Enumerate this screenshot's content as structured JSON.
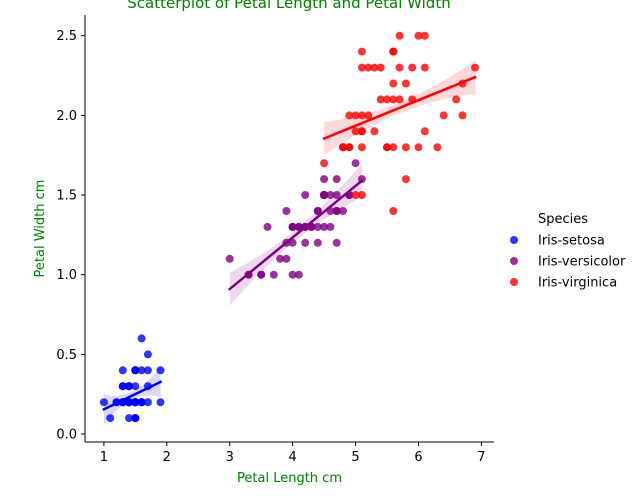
{
  "chart_data": {
    "type": "scatter",
    "title": "Scatterplot of Petal Length and Petal Width",
    "xlabel": "Petal Length cm",
    "ylabel": "Petal Width cm",
    "xlim": [
      0.7,
      7.2
    ],
    "ylim": [
      -0.05,
      2.63
    ],
    "xticks": [
      "1",
      "2",
      "3",
      "4",
      "5",
      "6",
      "7"
    ],
    "yticks": [
      "0.0",
      "0.5",
      "1.0",
      "1.5",
      "2.0",
      "2.5"
    ],
    "title_color": "#008000",
    "label_color": "#008000",
    "legend": {
      "title": "Species",
      "placement": "right"
    },
    "series": [
      {
        "name": "Iris-setosa",
        "color": "#0000ff",
        "points": [
          [
            1.4,
            0.2
          ],
          [
            1.4,
            0.2
          ],
          [
            1.3,
            0.2
          ],
          [
            1.5,
            0.2
          ],
          [
            1.4,
            0.2
          ],
          [
            1.7,
            0.4
          ],
          [
            1.4,
            0.3
          ],
          [
            1.5,
            0.2
          ],
          [
            1.4,
            0.2
          ],
          [
            1.5,
            0.1
          ],
          [
            1.5,
            0.2
          ],
          [
            1.6,
            0.2
          ],
          [
            1.4,
            0.1
          ],
          [
            1.1,
            0.1
          ],
          [
            1.2,
            0.2
          ],
          [
            1.5,
            0.4
          ],
          [
            1.3,
            0.4
          ],
          [
            1.4,
            0.3
          ],
          [
            1.7,
            0.3
          ],
          [
            1.5,
            0.3
          ],
          [
            1.7,
            0.2
          ],
          [
            1.5,
            0.4
          ],
          [
            1.0,
            0.2
          ],
          [
            1.7,
            0.5
          ],
          [
            1.9,
            0.2
          ],
          [
            1.6,
            0.2
          ],
          [
            1.6,
            0.4
          ],
          [
            1.5,
            0.2
          ],
          [
            1.4,
            0.2
          ],
          [
            1.6,
            0.2
          ],
          [
            1.6,
            0.2
          ],
          [
            1.5,
            0.4
          ],
          [
            1.5,
            0.1
          ],
          [
            1.4,
            0.2
          ],
          [
            1.5,
            0.1
          ],
          [
            1.2,
            0.2
          ],
          [
            1.3,
            0.2
          ],
          [
            1.5,
            0.1
          ],
          [
            1.3,
            0.2
          ],
          [
            1.5,
            0.2
          ],
          [
            1.3,
            0.3
          ],
          [
            1.3,
            0.3
          ],
          [
            1.3,
            0.2
          ],
          [
            1.6,
            0.6
          ],
          [
            1.9,
            0.4
          ],
          [
            1.4,
            0.3
          ],
          [
            1.6,
            0.2
          ],
          [
            1.4,
            0.2
          ],
          [
            1.5,
            0.2
          ],
          [
            1.4,
            0.2
          ]
        ],
        "fit": {
          "x": [
            1.0,
            1.9
          ],
          "y": [
            0.155,
            0.327
          ]
        }
      },
      {
        "name": "Iris-versicolor",
        "color": "#800080",
        "points": [
          [
            4.7,
            1.4
          ],
          [
            4.5,
            1.5
          ],
          [
            4.9,
            1.5
          ],
          [
            4.0,
            1.3
          ],
          [
            4.6,
            1.5
          ],
          [
            4.5,
            1.3
          ],
          [
            4.7,
            1.6
          ],
          [
            3.3,
            1.0
          ],
          [
            4.6,
            1.3
          ],
          [
            3.9,
            1.4
          ],
          [
            3.5,
            1.0
          ],
          [
            4.2,
            1.5
          ],
          [
            4.0,
            1.0
          ],
          [
            4.7,
            1.4
          ],
          [
            3.6,
            1.3
          ],
          [
            4.4,
            1.4
          ],
          [
            4.5,
            1.5
          ],
          [
            4.1,
            1.0
          ],
          [
            4.5,
            1.5
          ],
          [
            3.9,
            1.1
          ],
          [
            4.8,
            1.8
          ],
          [
            4.0,
            1.3
          ],
          [
            4.9,
            1.5
          ],
          [
            4.7,
            1.2
          ],
          [
            4.3,
            1.3
          ],
          [
            4.4,
            1.4
          ],
          [
            4.8,
            1.4
          ],
          [
            5.0,
            1.7
          ],
          [
            4.5,
            1.5
          ],
          [
            3.5,
            1.0
          ],
          [
            3.8,
            1.1
          ],
          [
            3.7,
            1.0
          ],
          [
            3.9,
            1.2
          ],
          [
            5.1,
            1.6
          ],
          [
            4.5,
            1.5
          ],
          [
            4.5,
            1.6
          ],
          [
            4.7,
            1.5
          ],
          [
            4.4,
            1.3
          ],
          [
            4.1,
            1.3
          ],
          [
            4.0,
            1.3
          ],
          [
            4.4,
            1.2
          ],
          [
            4.6,
            1.4
          ],
          [
            4.0,
            1.2
          ],
          [
            3.3,
            1.0
          ],
          [
            4.2,
            1.3
          ],
          [
            4.2,
            1.2
          ],
          [
            4.2,
            1.3
          ],
          [
            4.3,
            1.3
          ],
          [
            3.0,
            1.1
          ],
          [
            4.1,
            1.3
          ]
        ],
        "fit": {
          "x": [
            3.0,
            5.1
          ],
          "y": [
            0.91,
            1.59
          ]
        }
      },
      {
        "name": "Iris-virginica",
        "color": "#ff0000",
        "points": [
          [
            6.0,
            2.5
          ],
          [
            5.1,
            1.9
          ],
          [
            5.9,
            2.1
          ],
          [
            5.6,
            1.8
          ],
          [
            5.8,
            2.2
          ],
          [
            6.6,
            2.1
          ],
          [
            4.5,
            1.7
          ],
          [
            6.3,
            1.8
          ],
          [
            5.8,
            1.8
          ],
          [
            6.1,
            2.5
          ],
          [
            5.1,
            2.0
          ],
          [
            5.3,
            1.9
          ],
          [
            5.5,
            2.1
          ],
          [
            5.0,
            2.0
          ],
          [
            5.1,
            2.4
          ],
          [
            5.3,
            2.3
          ],
          [
            5.5,
            1.8
          ],
          [
            6.7,
            2.2
          ],
          [
            6.9,
            2.3
          ],
          [
            5.0,
            1.5
          ],
          [
            5.7,
            2.3
          ],
          [
            4.9,
            2.0
          ],
          [
            6.7,
            2.0
          ],
          [
            4.9,
            1.8
          ],
          [
            5.7,
            2.1
          ],
          [
            6.0,
            1.8
          ],
          [
            4.8,
            1.8
          ],
          [
            4.9,
            1.8
          ],
          [
            5.6,
            2.1
          ],
          [
            5.8,
            1.6
          ],
          [
            6.1,
            1.9
          ],
          [
            6.4,
            2.0
          ],
          [
            5.6,
            2.2
          ],
          [
            5.1,
            1.5
          ],
          [
            5.6,
            1.4
          ],
          [
            6.1,
            2.3
          ],
          [
            5.6,
            2.4
          ],
          [
            5.5,
            1.8
          ],
          [
            4.8,
            1.8
          ],
          [
            5.4,
            2.1
          ],
          [
            5.6,
            2.4
          ],
          [
            5.1,
            2.3
          ],
          [
            5.1,
            1.9
          ],
          [
            5.9,
            2.3
          ],
          [
            5.7,
            2.5
          ],
          [
            5.2,
            2.3
          ],
          [
            5.0,
            1.9
          ],
          [
            5.2,
            2.0
          ],
          [
            5.4,
            2.3
          ],
          [
            5.1,
            1.8
          ]
        ],
        "fit": {
          "x": [
            4.5,
            6.9
          ],
          "y": [
            1.855,
            2.24
          ]
        }
      }
    ]
  }
}
